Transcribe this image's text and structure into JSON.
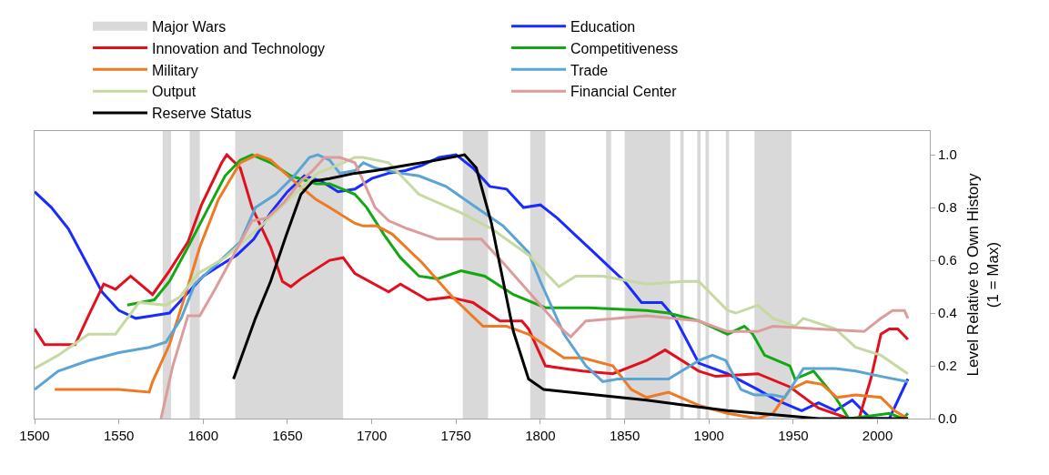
{
  "chart_data": {
    "type": "line",
    "ylabel": "Level Relative to Own History\n(1 = Max)",
    "xlim": [
      1500,
      2031
    ],
    "xticks": [
      1500,
      1550,
      1600,
      1650,
      1700,
      1750,
      1800,
      1850,
      1900,
      1950,
      2000
    ],
    "ylim": [
      0,
      1.09
    ],
    "yticks": [
      {
        "value": 0,
        "label": "0.0"
      },
      {
        "value": 0.2,
        "label": "0.2"
      },
      {
        "value": 0.4,
        "label": "0.4"
      },
      {
        "value": 0.6,
        "label": "0.6"
      },
      {
        "value": 0.8,
        "label": "0.8"
      },
      {
        "value": 1,
        "label": "1.0"
      }
    ],
    "grid": false,
    "legend": "top",
    "line_style": "solid",
    "marker": "none",
    "bands": [
      {
        "axis": "x",
        "from": 1576,
        "to": 1581,
        "label": "Major Wars",
        "color": "#d9d9d9"
      },
      {
        "axis": "x",
        "from": 1592,
        "to": 1598,
        "color": "#d9d9d9"
      },
      {
        "axis": "x",
        "from": 1619,
        "to": 1683,
        "color": "#d9d9d9"
      },
      {
        "axis": "x",
        "from": 1754,
        "to": 1769,
        "color": "#d9d9d9"
      },
      {
        "axis": "x",
        "from": 1794,
        "to": 1803,
        "color": "#d9d9d9"
      },
      {
        "axis": "x",
        "from": 1839,
        "to": 1842,
        "color": "#d9d9d9"
      },
      {
        "axis": "x",
        "from": 1850,
        "to": 1877,
        "color": "#d9d9d9"
      },
      {
        "axis": "x",
        "from": 1883,
        "to": 1885,
        "color": "#d9d9d9"
      },
      {
        "axis": "x",
        "from": 1893,
        "to": 1895,
        "color": "#d9d9d9"
      },
      {
        "axis": "x",
        "from": 1898,
        "to": 1900,
        "color": "#d9d9d9"
      },
      {
        "axis": "x",
        "from": 1910,
        "to": 1912,
        "color": "#d9d9d9"
      },
      {
        "axis": "x",
        "from": 1927,
        "to": 1949,
        "color": "#d9d9d9"
      }
    ],
    "series": [
      {
        "name": "Education",
        "color": "#1a2bff",
        "x": [
          1500,
          1510,
          1520,
          1530,
          1540,
          1550,
          1560,
          1570,
          1580,
          1590,
          1600,
          1610,
          1620,
          1630,
          1640,
          1650,
          1660,
          1670,
          1680,
          1690,
          1700,
          1710,
          1720,
          1730,
          1740,
          1750,
          1760,
          1770,
          1780,
          1790,
          1800,
          1810,
          1820,
          1830,
          1840,
          1850,
          1860,
          1872,
          1880,
          1894,
          1911,
          1929,
          1940,
          1955,
          1965,
          1975,
          1985,
          1996,
          2007,
          2018
        ],
        "values": [
          0.86,
          0.8,
          0.72,
          0.6,
          0.48,
          0.41,
          0.38,
          0.39,
          0.4,
          0.47,
          0.54,
          0.58,
          0.62,
          0.68,
          0.78,
          0.86,
          0.92,
          0.9,
          0.86,
          0.87,
          0.91,
          0.93,
          0.94,
          0.96,
          0.99,
          1.0,
          0.95,
          0.88,
          0.87,
          0.8,
          0.81,
          0.76,
          0.7,
          0.64,
          0.58,
          0.52,
          0.44,
          0.44,
          0.38,
          0.21,
          0.17,
          0.11,
          0.07,
          0.03,
          0.06,
          0.03,
          0.07,
          0.0,
          0.0,
          0.15
        ]
      },
      {
        "name": "Innovation and Technology",
        "color": "#e0101e",
        "x": [
          1500,
          1506,
          1524,
          1532,
          1541,
          1548,
          1557,
          1570,
          1580,
          1591,
          1599,
          1611,
          1614,
          1622,
          1629,
          1640,
          1647,
          1652,
          1658,
          1675,
          1683,
          1690,
          1710,
          1717,
          1733,
          1746,
          1760,
          1776,
          1789,
          1793,
          1803,
          1814,
          1825,
          1843,
          1863,
          1874,
          1894,
          1904,
          1929,
          1948,
          1965,
          1983,
          1989,
          1996,
          2002,
          2007,
          2012,
          2018
        ],
        "values": [
          0.34,
          0.28,
          0.28,
          0.39,
          0.51,
          0.49,
          0.54,
          0.47,
          0.56,
          0.67,
          0.81,
          0.97,
          1.0,
          0.95,
          0.8,
          0.65,
          0.52,
          0.5,
          0.53,
          0.6,
          0.61,
          0.55,
          0.48,
          0.51,
          0.45,
          0.46,
          0.44,
          0.37,
          0.37,
          0.34,
          0.2,
          0.19,
          0.18,
          0.17,
          0.22,
          0.26,
          0.18,
          0.16,
          0.17,
          0.12,
          0.04,
          0.0,
          0.0,
          0.15,
          0.32,
          0.34,
          0.34,
          0.3
        ]
      },
      {
        "name": "Competitiveness",
        "color": "#13a813",
        "x": [
          1555,
          1571,
          1580,
          1591,
          1604,
          1613,
          1622,
          1629,
          1640,
          1652,
          1667,
          1675,
          1690,
          1697,
          1708,
          1717,
          1728,
          1739,
          1753,
          1767,
          1784,
          1803,
          1829,
          1863,
          1876,
          1894,
          1911,
          1921,
          1926,
          1933,
          1948,
          1951,
          1962,
          1975,
          1983,
          1996,
          2007,
          2015,
          2018
        ],
        "values": [
          0.43,
          0.45,
          0.52,
          0.65,
          0.81,
          0.92,
          0.98,
          1.0,
          0.97,
          0.92,
          0.89,
          0.89,
          0.85,
          0.8,
          0.69,
          0.61,
          0.54,
          0.53,
          0.56,
          0.54,
          0.47,
          0.42,
          0.42,
          0.41,
          0.4,
          0.37,
          0.32,
          0.35,
          0.32,
          0.24,
          0.2,
          0.15,
          0.18,
          0.08,
          0.0,
          0.01,
          0.02,
          0.0,
          0.02
        ]
      },
      {
        "name": "Military",
        "color": "#ee7a25",
        "x": [
          1512,
          1550,
          1568,
          1570,
          1580,
          1589,
          1598,
          1609,
          1622,
          1632,
          1640,
          1652,
          1667,
          1675,
          1690,
          1695,
          1703,
          1712,
          1730,
          1748,
          1766,
          1780,
          1793,
          1814,
          1825,
          1843,
          1854,
          1863,
          1876,
          1894,
          1911,
          1929,
          1938,
          1948,
          1958,
          1967,
          1976,
          1987,
          2002,
          2010,
          2018
        ],
        "values": [
          0.11,
          0.11,
          0.1,
          0.14,
          0.28,
          0.46,
          0.65,
          0.83,
          0.97,
          1.0,
          0.98,
          0.91,
          0.83,
          0.8,
          0.74,
          0.73,
          0.73,
          0.7,
          0.59,
          0.46,
          0.35,
          0.35,
          0.32,
          0.23,
          0.23,
          0.2,
          0.11,
          0.08,
          0.1,
          0.05,
          0.02,
          0.0,
          0.02,
          0.11,
          0.14,
          0.13,
          0.08,
          0.09,
          0.08,
          0.03,
          0.0
        ]
      },
      {
        "name": "Trade",
        "color": "#5ba4d4",
        "x": [
          1500,
          1514,
          1532,
          1550,
          1568,
          1578,
          1587,
          1595,
          1607,
          1622,
          1631,
          1643,
          1654,
          1663,
          1668,
          1675,
          1681,
          1690,
          1695,
          1702,
          1717,
          1728,
          1744,
          1762,
          1778,
          1793,
          1800,
          1814,
          1827,
          1837,
          1846,
          1863,
          1876,
          1894,
          1902,
          1910,
          1919,
          1927,
          1938,
          1945,
          1956,
          1975,
          1987,
          2002,
          2018
        ],
        "values": [
          0.11,
          0.18,
          0.22,
          0.25,
          0.27,
          0.29,
          0.38,
          0.51,
          0.58,
          0.67,
          0.8,
          0.85,
          0.92,
          0.99,
          1.0,
          0.98,
          0.93,
          0.94,
          0.97,
          0.95,
          0.93,
          0.92,
          0.88,
          0.8,
          0.73,
          0.63,
          0.52,
          0.32,
          0.2,
          0.14,
          0.15,
          0.15,
          0.15,
          0.22,
          0.24,
          0.22,
          0.11,
          0.09,
          0.09,
          0.08,
          0.19,
          0.19,
          0.18,
          0.16,
          0.14
        ]
      },
      {
        "name": "Output",
        "color": "#c5d9a0",
        "x": [
          1500,
          1514,
          1532,
          1548,
          1562,
          1578,
          1586,
          1597,
          1613,
          1636,
          1654,
          1668,
          1683,
          1690,
          1695,
          1710,
          1728,
          1753,
          1771,
          1793,
          1811,
          1821,
          1837,
          1863,
          1885,
          1894,
          1911,
          1916,
          1929,
          1938,
          1951,
          1956,
          1975,
          1987,
          2002,
          2018
        ],
        "values": [
          0.19,
          0.24,
          0.32,
          0.32,
          0.44,
          0.43,
          0.46,
          0.55,
          0.61,
          0.74,
          0.85,
          0.93,
          0.97,
          0.99,
          0.99,
          0.97,
          0.85,
          0.78,
          0.72,
          0.62,
          0.5,
          0.54,
          0.54,
          0.51,
          0.52,
          0.52,
          0.41,
          0.4,
          0.43,
          0.38,
          0.35,
          0.38,
          0.34,
          0.27,
          0.24,
          0.17
        ]
      },
      {
        "name": "Financial Center",
        "color": "#dc9c9c",
        "x": [
          1575,
          1582,
          1591,
          1598,
          1607,
          1618,
          1629,
          1638,
          1648,
          1658,
          1665,
          1672,
          1681,
          1690,
          1695,
          1702,
          1710,
          1721,
          1739,
          1757,
          1765,
          1778,
          1796,
          1811,
          1818,
          1827,
          1846,
          1863,
          1894,
          1911,
          1929,
          1938,
          1965,
          1992,
          2002,
          2009,
          2016,
          2018
        ],
        "values": [
          0.0,
          0.2,
          0.39,
          0.39,
          0.49,
          0.62,
          0.75,
          0.76,
          0.82,
          0.9,
          0.94,
          0.99,
          0.99,
          0.97,
          0.9,
          0.8,
          0.75,
          0.72,
          0.68,
          0.68,
          0.68,
          0.59,
          0.46,
          0.35,
          0.31,
          0.37,
          0.38,
          0.39,
          0.37,
          0.33,
          0.33,
          0.35,
          0.34,
          0.33,
          0.38,
          0.41,
          0.41,
          0.38
        ]
      },
      {
        "name": "Reserve Status",
        "color": "#000000",
        "x": [
          1618,
          1631,
          1640,
          1649,
          1658,
          1665,
          1675,
          1690,
          1702,
          1720,
          1739,
          1755,
          1762,
          1771,
          1784,
          1793,
          1802,
          1863,
          1911,
          1965,
          2018
        ],
        "values": [
          0.15,
          0.38,
          0.52,
          0.69,
          0.85,
          0.9,
          0.91,
          0.93,
          0.94,
          0.96,
          0.98,
          1.0,
          0.95,
          0.74,
          0.33,
          0.15,
          0.11,
          0.07,
          0.03,
          0.0,
          0.0
        ]
      }
    ]
  }
}
